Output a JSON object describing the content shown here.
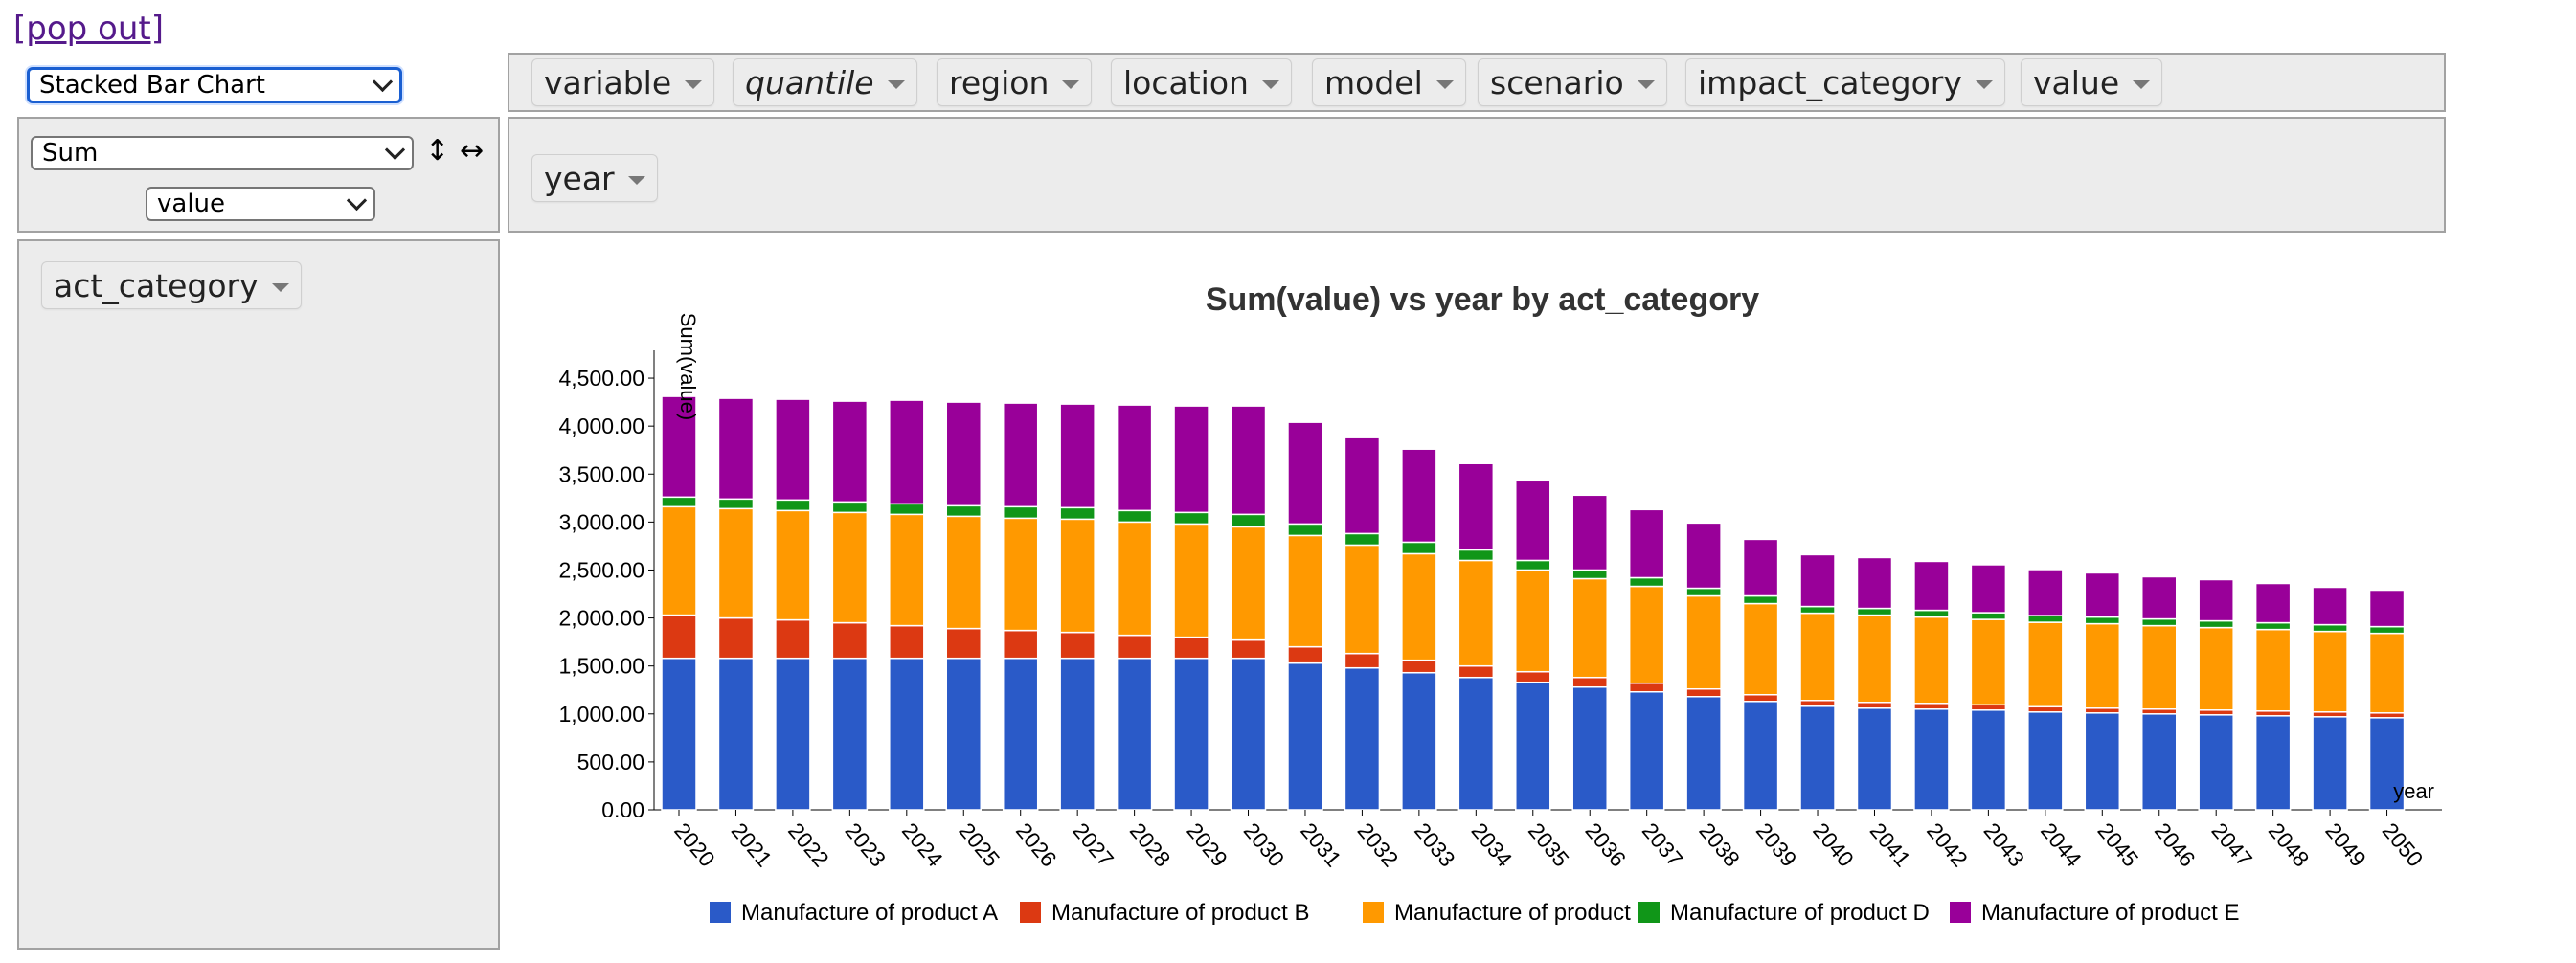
{
  "popout": "[pop out]",
  "renderer": "Stacked Bar Chart",
  "aggregator": "Sum",
  "aggregator_field": "value",
  "sort_rows_icon": "↕",
  "sort_cols_icon": "↔",
  "unused_attrs": [
    {
      "label": "variable",
      "italic": false
    },
    {
      "label": "quantile",
      "italic": true
    },
    {
      "label": "region",
      "italic": false
    },
    {
      "label": "location",
      "italic": false
    },
    {
      "label": "model",
      "italic": false
    },
    {
      "label": "scenario",
      "italic": false
    },
    {
      "label": "impact_category",
      "italic": false
    },
    {
      "label": "value",
      "italic": false
    }
  ],
  "col_attrs": [
    {
      "label": "year"
    }
  ],
  "row_attrs": [
    {
      "label": "act_category"
    }
  ],
  "colors": {
    "Manufacture of product A": "#2a5ac8",
    "Manufacture of product B": "#dc3912",
    "Manufacture of product C": "#ff9900",
    "Manufacture of product D": "#109618",
    "Manufacture of product E": "#990099"
  },
  "chart_data": {
    "type": "bar",
    "stacked": true,
    "title": "Sum(value) vs year by act_category",
    "xlabel": "year",
    "ylabel": "Sum(value)",
    "ylim": [
      0,
      4750
    ],
    "yticks": [
      "0.00",
      "500.00",
      "1,000.00",
      "1,500.00",
      "2,000.00",
      "2,500.00",
      "3,000.00",
      "3,500.00",
      "4,000.00",
      "4,500.00"
    ],
    "categories": [
      "2020",
      "2021",
      "2022",
      "2023",
      "2024",
      "2025",
      "2026",
      "2027",
      "2028",
      "2029",
      "2030",
      "2031",
      "2032",
      "2033",
      "2034",
      "2035",
      "2036",
      "2037",
      "2038",
      "2039",
      "2040",
      "2041",
      "2042",
      "2043",
      "2044",
      "2045",
      "2046",
      "2047",
      "2048",
      "2049",
      "2050"
    ],
    "legend_position": "bottom",
    "series": [
      {
        "name": "Manufacture of product A",
        "values": [
          1580,
          1580,
          1580,
          1580,
          1580,
          1580,
          1580,
          1580,
          1580,
          1580,
          1580,
          1530,
          1480,
          1430,
          1380,
          1330,
          1280,
          1230,
          1180,
          1130,
          1080,
          1060,
          1050,
          1040,
          1020,
          1010,
          1000,
          990,
          980,
          970,
          960
        ]
      },
      {
        "name": "Manufacture of product B",
        "values": [
          450,
          420,
          400,
          370,
          340,
          310,
          290,
          270,
          240,
          220,
          190,
          170,
          150,
          130,
          120,
          110,
          100,
          90,
          80,
          70,
          60,
          60,
          60,
          55,
          55,
          50,
          50,
          50,
          50,
          50,
          50
        ]
      },
      {
        "name": "Manufacture of product C",
        "values": [
          1130,
          1140,
          1140,
          1150,
          1160,
          1170,
          1170,
          1180,
          1180,
          1180,
          1180,
          1160,
          1130,
          1110,
          1100,
          1060,
          1030,
          1010,
          970,
          950,
          910,
          910,
          900,
          890,
          880,
          880,
          870,
          860,
          850,
          840,
          830
        ]
      },
      {
        "name": "Manufacture of product D",
        "values": [
          100,
          100,
          110,
          110,
          110,
          110,
          120,
          120,
          120,
          120,
          130,
          120,
          120,
          120,
          110,
          100,
          90,
          90,
          80,
          80,
          70,
          70,
          70,
          70,
          70,
          70,
          70,
          70,
          70,
          70,
          70
        ]
      },
      {
        "name": "Manufacture of product E",
        "values": [
          1050,
          1050,
          1050,
          1050,
          1080,
          1080,
          1080,
          1080,
          1100,
          1110,
          1130,
          1060,
          1000,
          970,
          900,
          840,
          780,
          710,
          680,
          590,
          540,
          530,
          510,
          500,
          480,
          460,
          440,
          430,
          410,
          390,
          380
        ]
      }
    ]
  }
}
